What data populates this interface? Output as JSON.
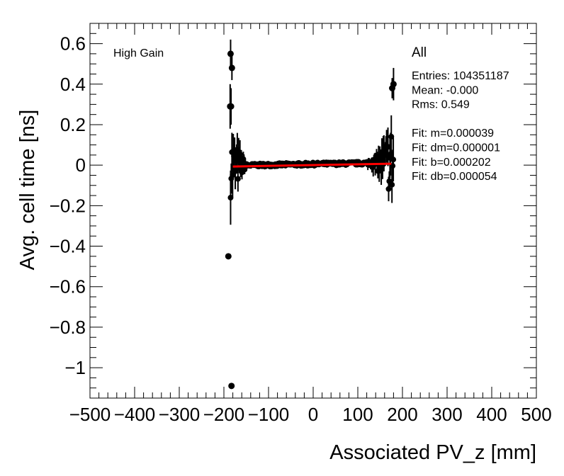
{
  "chart_data": {
    "type": "scatter",
    "title": "",
    "xlabel": "Associated PV_z [mm]",
    "ylabel": "Avg. cell time [ns]",
    "xlim": [
      -500,
      500
    ],
    "ylim": [
      -1.15,
      0.7
    ],
    "x_ticks": [
      -500,
      -400,
      -300,
      -200,
      -100,
      0,
      100,
      200,
      300,
      400,
      500
    ],
    "x_tick_labels": [
      "−500",
      "−400",
      "−300",
      "−200",
      "−100",
      "0",
      "100",
      "200",
      "300",
      "400",
      "500"
    ],
    "y_ticks": [
      -1.0,
      -0.8,
      -0.6,
      -0.4,
      -0.2,
      0,
      0.2,
      0.4,
      0.6
    ],
    "y_tick_labels": [
      "−1",
      "−0.8",
      "−0.6",
      "−0.4",
      "−0.2",
      "0",
      "0.2",
      "0.4",
      "0.6"
    ],
    "grid": false,
    "gain_label": "High Gain",
    "selection_label": "All",
    "stats": [
      "Entries: 104351187",
      "Mean: -0.000",
      "Rms: 0.549",
      "",
      "Fit: m=0.000039",
      "Fit: dm=0.000001",
      "Fit: b=0.000202",
      "Fit: db=0.000054"
    ],
    "outlier_points": [
      {
        "x": -190,
        "y": -0.45,
        "err": 0
      },
      {
        "x": -183,
        "y": -1.09,
        "err": 0
      },
      {
        "x": -185,
        "y": 0.55,
        "err": 0.07
      },
      {
        "x": -182,
        "y": 0.48,
        "err": 0.06
      },
      {
        "x": -186,
        "y": 0.29,
        "err": 0.11
      },
      {
        "x": -184,
        "y": 0.29,
        "err": 0.09
      },
      {
        "x": 180,
        "y": 0.4,
        "err": 0.08
      },
      {
        "x": 177,
        "y": 0.38,
        "err": 0.05
      }
    ],
    "series": [
      {
        "name": "data",
        "x_range": [
          -185,
          180
        ],
        "core_mean": 0.005,
        "core_sigma": 0.008,
        "left_edge_spread": 0.15,
        "right_edge_spread": 0.2
      }
    ],
    "fit": {
      "name": "linear fit",
      "m": 3.9e-05,
      "b": 0.000202,
      "x_range": [
        -180,
        175
      ],
      "color": "#ff0000"
    }
  }
}
